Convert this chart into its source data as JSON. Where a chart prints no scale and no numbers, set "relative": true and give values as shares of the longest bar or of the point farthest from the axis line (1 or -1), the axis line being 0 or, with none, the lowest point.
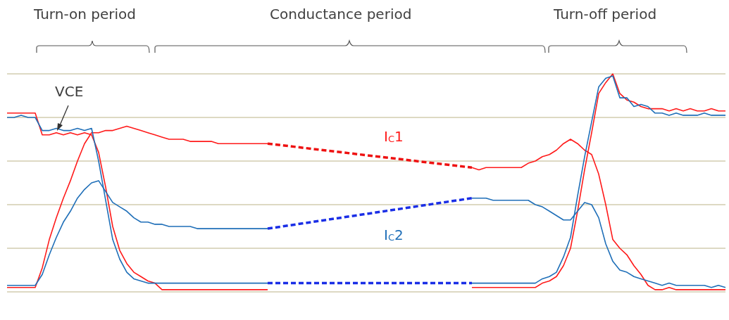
{
  "chart_data": {
    "type": "line",
    "relative": true,
    "grid": "y",
    "marker": "none",
    "line_style": "solid",
    "categories": [
      null,
      null,
      null,
      null,
      null,
      null,
      null,
      null,
      null,
      null,
      null,
      null,
      null,
      null,
      null,
      null,
      null,
      null,
      null,
      null,
      null,
      null,
      null,
      null,
      null,
      null,
      null,
      null,
      null,
      null,
      null,
      null,
      null,
      null,
      null,
      null,
      null,
      null,
      null,
      null,
      null,
      null,
      null,
      null,
      null,
      null,
      null,
      null,
      null,
      null,
      null,
      null,
      null,
      null,
      null,
      null,
      null,
      null,
      null,
      null,
      null,
      null,
      null,
      null,
      null,
      null,
      null,
      null,
      null,
      null,
      null,
      null,
      null,
      null,
      null,
      null,
      null,
      null,
      null,
      null,
      null,
      null,
      null,
      null,
      null,
      null,
      null,
      null,
      null,
      null,
      null,
      null,
      null,
      null,
      null,
      null,
      null,
      null,
      null,
      null,
      null,
      null,
      null
    ],
    "annotations": [
      "Turn-on period",
      "Conductance period",
      "Turn-off period",
      "VCE"
    ],
    "series": [
      {
        "color": "#ff1a1a",
        "values": [
          0.82,
          0.82,
          0.82,
          0.82,
          0.82,
          0.72,
          0.72,
          0.73,
          0.72,
          0.73,
          0.72,
          0.73,
          0.72,
          0.64,
          0.48,
          0.3,
          0.19,
          0.13,
          0.09,
          0.07,
          0.05,
          0.04,
          0.01,
          0.01,
          0.01,
          0.01,
          0.01,
          0.01,
          0.01,
          0.01,
          0.01,
          0.01,
          0.01,
          0.01,
          0.01,
          0.01,
          0.01,
          0.01,
          null,
          null,
          null,
          null,
          null,
          null,
          null,
          null,
          null,
          null,
          null,
          null,
          null,
          null,
          null,
          null,
          null,
          null,
          null,
          null,
          null,
          null,
          null,
          null,
          null,
          null,
          null,
          null,
          0.02,
          0.02,
          0.02,
          0.02,
          0.02,
          0.02,
          0.02,
          0.02,
          0.02,
          0.02,
          0.04,
          0.05,
          0.07,
          0.12,
          0.2,
          0.37,
          0.56,
          0.73,
          0.91,
          0.96,
          1.0,
          0.91,
          0.88,
          0.87,
          0.85,
          0.84,
          0.84,
          0.84,
          0.83,
          0.84,
          0.83,
          0.84,
          0.83,
          0.83,
          0.84,
          0.83,
          0.83
        ]
      },
      {
        "name": "I$_{C}$1",
        "color": "#ff1a1a",
        "values": [
          0.02,
          0.02,
          0.02,
          0.02,
          0.02,
          0.11,
          0.24,
          0.34,
          0.43,
          0.51,
          0.6,
          0.68,
          0.73,
          0.73,
          0.74,
          0.74,
          0.75,
          0.76,
          0.75,
          0.74,
          0.73,
          0.72,
          0.71,
          0.7,
          0.7,
          0.7,
          0.69,
          0.69,
          0.69,
          0.69,
          0.68,
          0.68,
          0.68,
          0.68,
          0.68,
          0.68,
          0.68,
          0.68,
          null,
          null,
          null,
          null,
          null,
          null,
          null,
          null,
          null,
          null,
          null,
          null,
          null,
          null,
          null,
          null,
          null,
          null,
          null,
          null,
          null,
          null,
          null,
          null,
          null,
          null,
          null,
          null,
          0.57,
          0.56,
          0.57,
          0.57,
          0.57,
          0.57,
          0.57,
          0.57,
          0.59,
          0.6,
          0.62,
          0.63,
          0.65,
          0.68,
          0.7,
          0.68,
          0.65,
          0.63,
          0.54,
          0.4,
          0.24,
          0.2,
          0.17,
          0.12,
          0.08,
          0.03,
          0.01,
          0.01,
          0.02,
          0.01,
          0.01,
          0.01,
          0.01,
          0.01,
          0.01,
          0.01,
          0.01
        ]
      },
      {
        "name": "I$_{C}$2",
        "color": "#1f6fb8",
        "values": [
          0.03,
          0.03,
          0.03,
          0.03,
          0.03,
          0.08,
          0.17,
          0.25,
          0.32,
          0.37,
          0.43,
          0.47,
          0.5,
          0.51,
          0.46,
          0.41,
          0.39,
          0.37,
          0.34,
          0.32,
          0.32,
          0.31,
          0.31,
          0.3,
          0.3,
          0.3,
          0.3,
          0.29,
          0.29,
          0.29,
          0.29,
          0.29,
          0.29,
          0.29,
          0.29,
          0.29,
          0.29,
          0.29,
          null,
          null,
          null,
          null,
          null,
          null,
          null,
          null,
          null,
          null,
          null,
          null,
          null,
          null,
          null,
          null,
          null,
          null,
          null,
          null,
          null,
          null,
          null,
          null,
          null,
          null,
          null,
          null,
          0.43,
          0.43,
          0.43,
          0.42,
          0.42,
          0.42,
          0.42,
          0.42,
          0.42,
          0.4,
          0.39,
          0.37,
          0.35,
          0.33,
          0.33,
          0.37,
          0.41,
          0.4,
          0.34,
          0.22,
          0.14,
          0.1,
          0.09,
          0.07,
          0.06,
          0.05,
          0.04,
          0.03,
          0.04,
          0.03,
          0.03,
          0.03,
          0.03,
          0.03,
          0.02,
          0.03,
          0.02
        ]
      },
      {
        "color": "#1f6fb8",
        "values": [
          0.8,
          0.8,
          0.81,
          0.8,
          0.8,
          0.74,
          0.74,
          0.75,
          0.74,
          0.74,
          0.75,
          0.74,
          0.75,
          0.6,
          0.42,
          0.24,
          0.15,
          0.09,
          0.06,
          0.05,
          0.04,
          0.04,
          0.04,
          0.04,
          0.04,
          0.04,
          0.04,
          0.04,
          0.04,
          0.04,
          0.04,
          0.04,
          0.04,
          0.04,
          0.04,
          0.04,
          0.04,
          0.04,
          null,
          null,
          null,
          null,
          null,
          null,
          null,
          null,
          null,
          null,
          null,
          null,
          null,
          null,
          null,
          null,
          null,
          null,
          null,
          null,
          null,
          null,
          null,
          null,
          null,
          null,
          null,
          null,
          0.04,
          0.04,
          0.04,
          0.04,
          0.04,
          0.04,
          0.04,
          0.04,
          0.04,
          0.04,
          0.06,
          0.07,
          0.09,
          0.16,
          0.25,
          0.44,
          0.62,
          0.78,
          0.94,
          0.98,
          0.99,
          0.89,
          0.89,
          0.85,
          0.86,
          0.85,
          0.82,
          0.82,
          0.81,
          0.82,
          0.81,
          0.81,
          0.81,
          0.82,
          0.81,
          0.81,
          0.81
        ]
      },
      {
        "color": "#ee1111",
        "line_style": "dashed",
        "values": [
          null,
          null,
          null,
          null,
          null,
          null,
          null,
          null,
          null,
          null,
          null,
          null,
          null,
          null,
          null,
          null,
          null,
          null,
          null,
          null,
          null,
          null,
          null,
          null,
          null,
          null,
          null,
          null,
          null,
          null,
          null,
          null,
          null,
          null,
          null,
          null,
          null,
          0.68,
          null,
          null,
          null,
          null,
          null,
          null,
          null,
          null,
          null,
          null,
          null,
          null,
          null,
          null,
          null,
          null,
          null,
          null,
          null,
          null,
          null,
          null,
          null,
          null,
          null,
          null,
          null,
          null,
          0.57,
          null,
          null,
          null,
          null,
          null,
          null,
          null,
          null,
          null,
          null,
          null,
          null,
          null,
          null,
          null,
          null,
          null,
          null,
          null,
          null,
          null,
          null,
          null,
          null,
          null,
          null,
          null,
          null,
          null,
          null,
          null,
          null,
          null,
          null,
          null,
          null
        ]
      },
      {
        "color": "#1a2ee6",
        "line_style": "dashed",
        "values": [
          null,
          null,
          null,
          null,
          null,
          null,
          null,
          null,
          null,
          null,
          null,
          null,
          null,
          null,
          null,
          null,
          null,
          null,
          null,
          null,
          null,
          null,
          null,
          null,
          null,
          null,
          null,
          null,
          null,
          null,
          null,
          null,
          null,
          null,
          null,
          null,
          null,
          0.29,
          null,
          null,
          null,
          null,
          null,
          null,
          null,
          null,
          null,
          null,
          null,
          null,
          null,
          null,
          null,
          null,
          null,
          null,
          null,
          null,
          null,
          null,
          null,
          null,
          null,
          null,
          null,
          null,
          0.43,
          null,
          null,
          null,
          null,
          null,
          null,
          null,
          null,
          null,
          null,
          null,
          null,
          null,
          null,
          null,
          null,
          null,
          null,
          null,
          null,
          null,
          null,
          null,
          null,
          null,
          null,
          null,
          null,
          null,
          null,
          null,
          null,
          null,
          null,
          null,
          null
        ]
      },
      {
        "color": "#1a2ee6",
        "line_style": "dashed",
        "values": [
          null,
          null,
          null,
          null,
          null,
          null,
          null,
          null,
          null,
          null,
          null,
          null,
          null,
          null,
          null,
          null,
          null,
          null,
          null,
          null,
          null,
          null,
          null,
          null,
          null,
          null,
          null,
          null,
          null,
          null,
          null,
          null,
          null,
          null,
          null,
          null,
          null,
          0.04,
          null,
          null,
          null,
          null,
          null,
          null,
          null,
          null,
          null,
          null,
          null,
          null,
          null,
          null,
          null,
          null,
          null,
          null,
          null,
          null,
          null,
          null,
          null,
          null,
          null,
          null,
          null,
          null,
          0.04,
          null,
          null,
          null,
          null,
          null,
          null,
          null,
          null,
          null,
          null,
          null,
          null,
          null,
          null,
          null,
          null,
          null,
          null,
          null,
          null,
          null,
          null,
          null,
          null,
          null,
          null,
          null,
          null,
          null,
          null,
          null,
          null,
          null,
          null,
          null,
          null
        ]
      }
    ]
  }
}
